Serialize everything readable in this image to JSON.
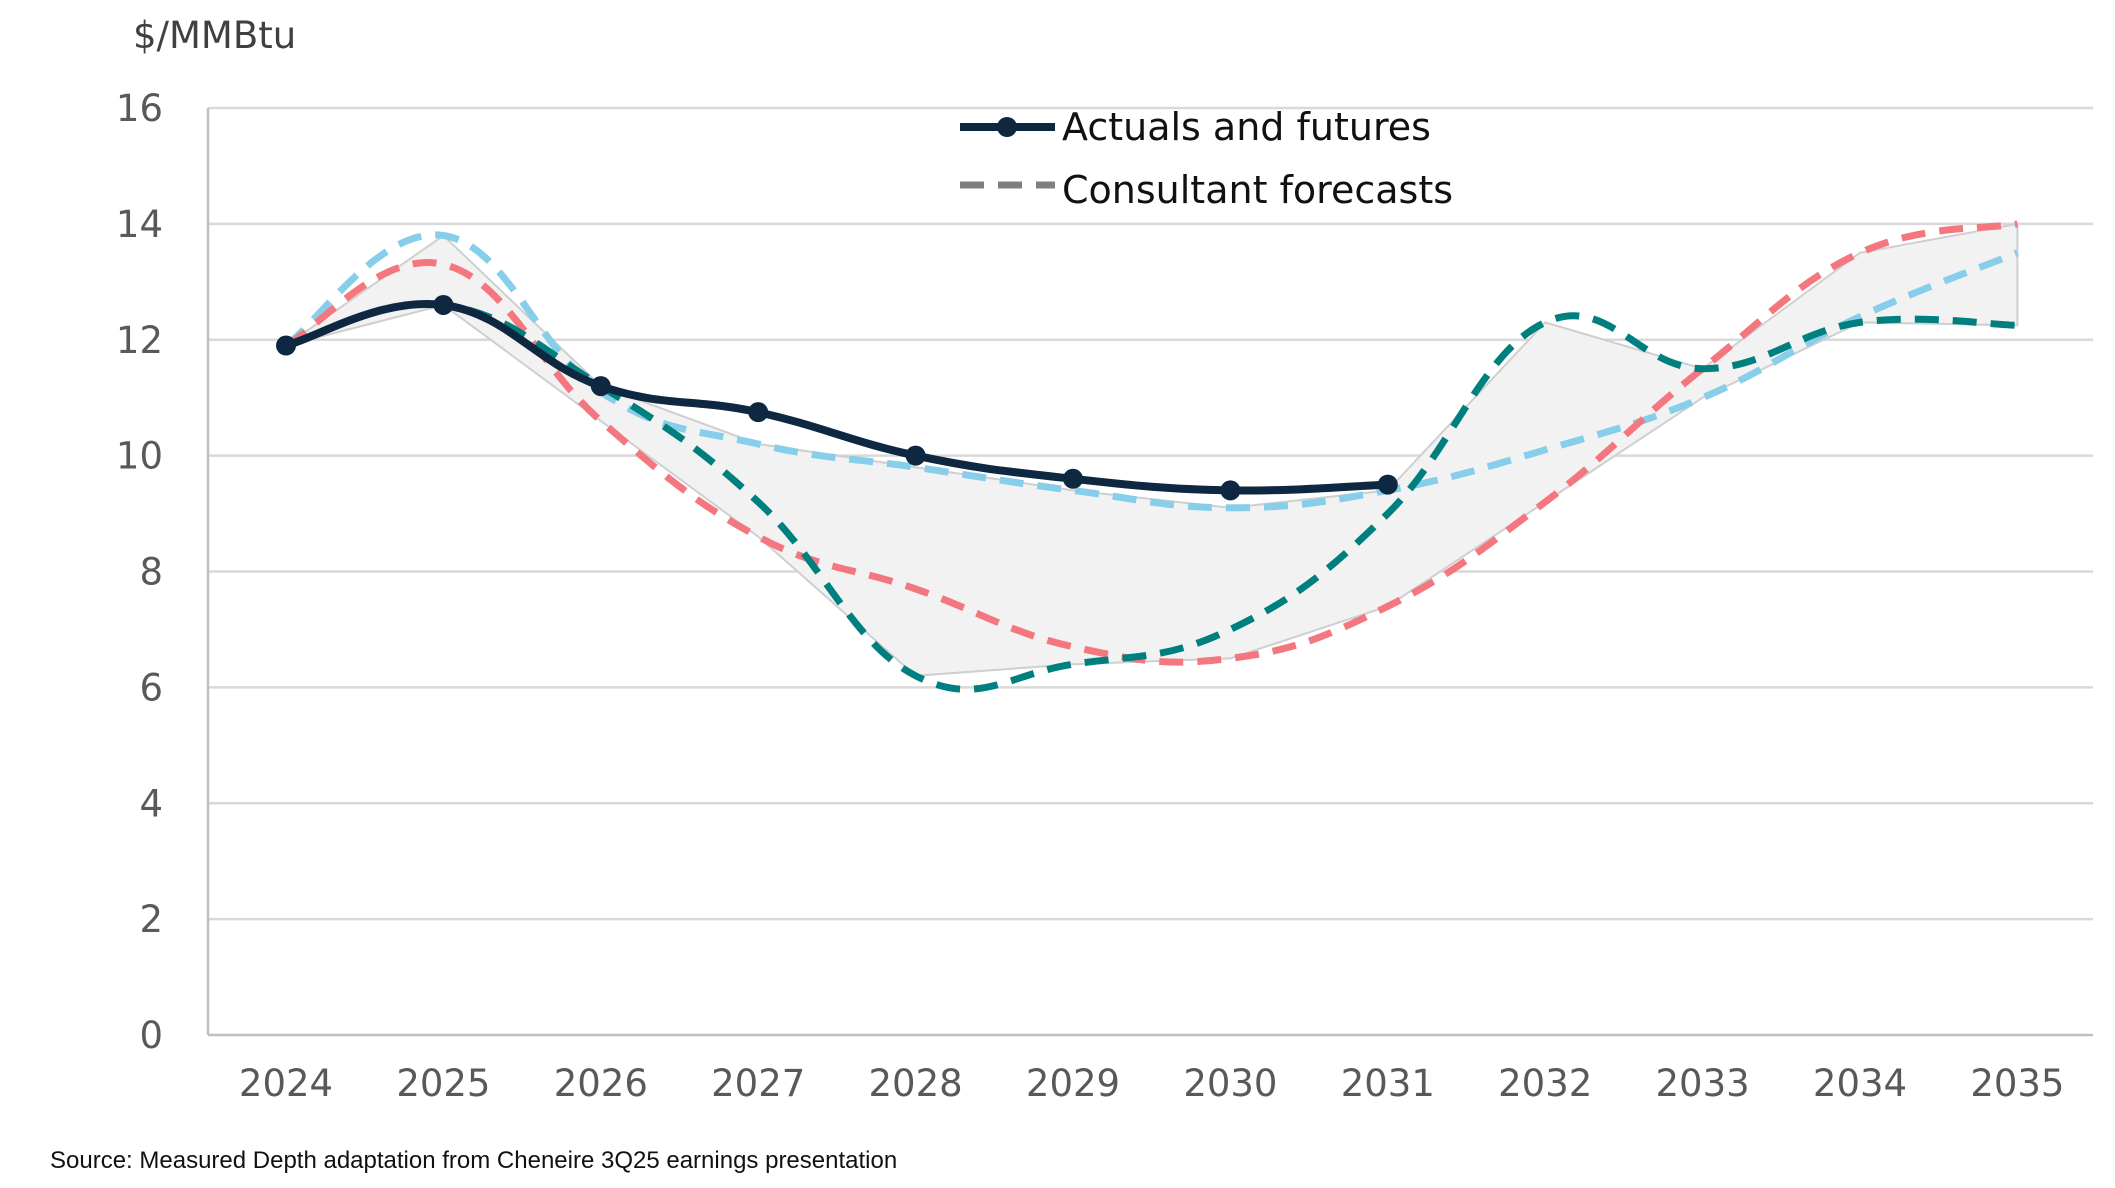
{
  "chart_data": {
    "type": "line",
    "ylabel": "$/MMBtu",
    "ylim": [
      0,
      16
    ],
    "yticks": [
      "0",
      "2",
      "4",
      "6",
      "8",
      "10",
      "12",
      "14",
      "16"
    ],
    "x": [
      "2024",
      "2025",
      "2026",
      "2027",
      "2028",
      "2029",
      "2030",
      "2031",
      "2032",
      "2033",
      "2034",
      "2035"
    ],
    "grid": "horizontal",
    "legend": {
      "placement": "top-center",
      "entries": [
        {
          "label": "Actuals and futures",
          "style": "solid-marker"
        },
        {
          "label": "Consultant forecasts",
          "style": "dashed"
        }
      ]
    },
    "range_band": {
      "description_style": "shaded min-max of forecasts",
      "color": "#f2f2f2"
    },
    "series": [
      {
        "name": "Actuals and futures",
        "color": "#0e2841",
        "style": "solid",
        "markers": true,
        "values": [
          11.9,
          12.6,
          11.2,
          10.75,
          10.0,
          9.6,
          9.4,
          9.5,
          null,
          null,
          null,
          null
        ]
      },
      {
        "color": "#87ceeb",
        "style": "dashed",
        "values": [
          11.9,
          13.8,
          11.1,
          10.2,
          9.8,
          9.4,
          9.1,
          9.4,
          10.1,
          11.0,
          12.4,
          13.5
        ]
      },
      {
        "color": "#f4777f",
        "style": "dashed",
        "values": [
          11.9,
          13.3,
          10.6,
          8.6,
          7.7,
          6.7,
          6.5,
          7.4,
          9.2,
          11.5,
          13.5,
          14.0
        ]
      },
      {
        "color": "#007f7f",
        "style": "dashed",
        "values": [
          11.9,
          12.6,
          11.2,
          9.2,
          6.2,
          6.4,
          7.0,
          9.0,
          12.3,
          11.5,
          12.3,
          12.25
        ]
      }
    ]
  },
  "source_note": "Source: Measured Depth adaptation from Cheneire 3Q25 earnings presentation"
}
